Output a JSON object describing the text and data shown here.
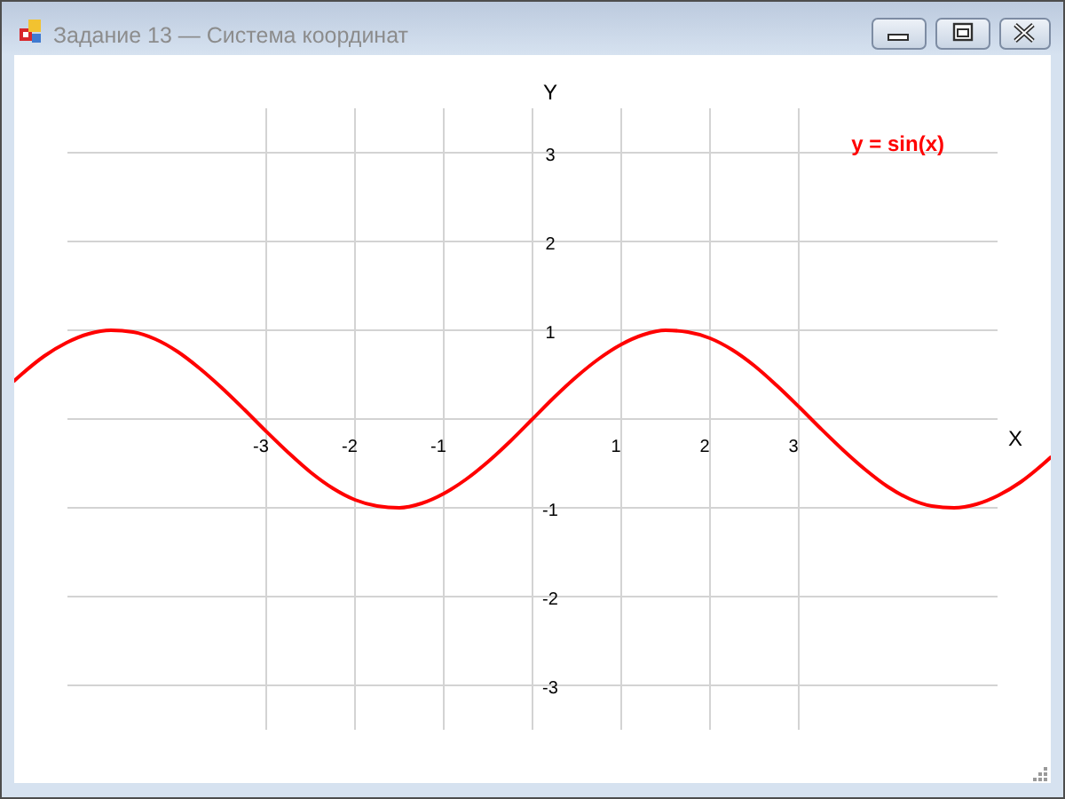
{
  "chart_data": {
    "type": "line",
    "title": "Задание 13 — Система координат",
    "xlabel": "X",
    "ylabel": "Y",
    "x": [
      -5.84,
      -5.75,
      -5.5,
      -5.25,
      -5,
      -4.75,
      -4.5,
      -4.25,
      -4,
      -3.75,
      -3.5,
      -3.25,
      -3,
      -2.75,
      -2.5,
      -2.25,
      -2,
      -1.75,
      -1.5,
      -1.25,
      -1,
      -0.75,
      -0.5,
      -0.25,
      0,
      0.25,
      0.5,
      0.75,
      1,
      1.25,
      1.5,
      1.75,
      2,
      2.25,
      2.5,
      2.75,
      3,
      3.25,
      3.5,
      3.75,
      4,
      4.25,
      4.5,
      4.75,
      5,
      5.25,
      5.5,
      5.75,
      5.84
    ],
    "series": [
      {
        "name": "y = sin(x)",
        "color": "#ff0000",
        "values": [
          0.43,
          0.51,
          0.71,
          0.86,
          0.96,
          1,
          0.98,
          0.9,
          0.76,
          0.57,
          0.35,
          0.11,
          -0.14,
          -0.38,
          -0.6,
          -0.78,
          -0.91,
          -0.98,
          -1,
          -0.95,
          -0.84,
          -0.68,
          -0.48,
          -0.25,
          0,
          0.25,
          0.48,
          0.68,
          0.84,
          0.95,
          1,
          0.98,
          0.91,
          0.78,
          0.6,
          0.38,
          0.14,
          -0.11,
          -0.35,
          -0.57,
          -0.76,
          -0.9,
          -0.98,
          -1,
          -0.96,
          -0.86,
          -0.71,
          -0.51,
          -0.43
        ]
      }
    ],
    "xlim": [
      -5.84,
      5.84
    ],
    "ylim": [
      -4.1,
      4.1
    ],
    "xticks": [
      -3,
      -2,
      -1,
      {
        "value": 0,
        "label": null
      },
      1,
      2,
      3
    ],
    "yticks": [
      -3,
      -2,
      -1,
      {
        "value": 0,
        "label": null
      },
      1,
      2,
      3
    ],
    "grid": true,
    "legend": "top right"
  }
}
